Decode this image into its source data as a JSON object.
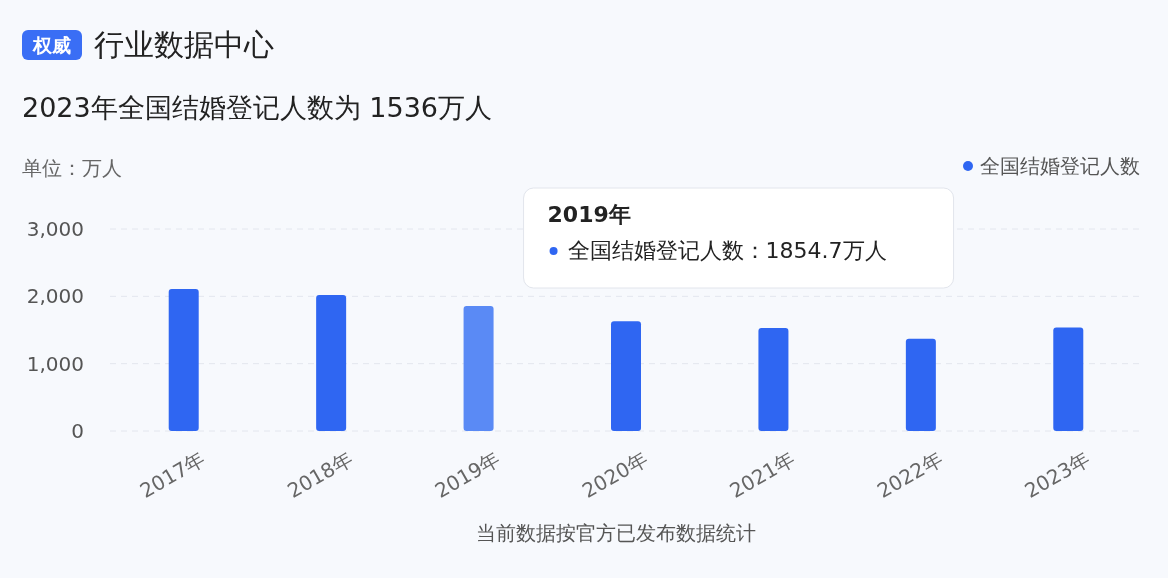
{
  "chart_data": {
    "type": "bar",
    "title": "行业数据中心",
    "subtitle": "2023年全国结婚登记人数为 1536万人",
    "ylabel": "单位：万人",
    "categories": [
      "2017年",
      "2018年",
      "2019年",
      "2020年",
      "2021年",
      "2022年",
      "2023年"
    ],
    "series": [
      {
        "name": "全国结婚登记人数",
        "color": "#2f66f2",
        "colors": [
          "#2f66f2",
          "#2f66f2",
          "#5a8af5",
          "#2f66f2",
          "#2f66f2",
          "#2f66f2",
          "#2f66f2"
        ],
        "values": [
          2110,
          2020,
          1854.7,
          1630,
          1530,
          1370,
          1536
        ]
      }
    ],
    "ylim": [
      0,
      3000
    ],
    "yticks": [
      {
        "value": 0,
        "label": "0"
      },
      {
        "value": 1000,
        "label": "1,000"
      },
      {
        "value": 2000,
        "label": "2,000"
      },
      {
        "value": 3000,
        "label": "3,000"
      }
    ],
    "grid": "y",
    "legend": "top right",
    "annotations": [
      "权威",
      "2019年",
      "全国结婚登记人数：1854.7万人",
      "当前数据按官方已发布数据统计"
    ]
  }
}
